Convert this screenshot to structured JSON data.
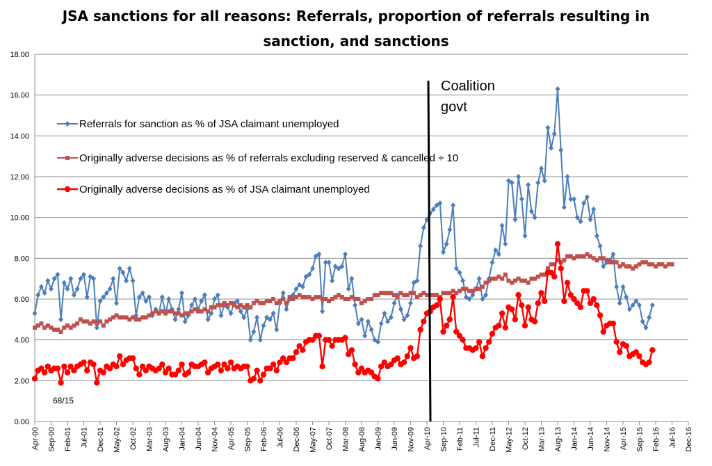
{
  "chart_data": {
    "type": "line",
    "title_line1": "JSA sanctions for all reasons: Referrals, proportion of referrals resulting in",
    "title_line2": "sanction, and sanctions",
    "xlabel": "",
    "ylabel": "",
    "ylim": [
      0,
      18
    ],
    "yticks": [
      "0.00",
      "2.00",
      "4.00",
      "6.00",
      "8.00",
      "10.00",
      "12.00",
      "14.00",
      "16.00",
      "18.00"
    ],
    "xticks": [
      "Apr-00",
      "Sep-00",
      "Feb-01",
      "Jul-01",
      "Dec-01",
      "May-02",
      "Oct-02",
      "Mar-03",
      "Aug-03",
      "Jan-04",
      "Jun-04",
      "Nov-04",
      "Apr-05",
      "Sep-05",
      "Feb-06",
      "Jul-06",
      "Dec-06",
      "May-07",
      "Oct-07",
      "Mar-08",
      "Aug-08",
      "Jan-09",
      "Jun-09",
      "Nov-09",
      "Apr-10",
      "Sep-10",
      "Feb-11",
      "Jul-11",
      "Dec-11",
      "May-12",
      "Oct-12",
      "Mar-13",
      "Aug-13",
      "Jan-14",
      "Jun-14",
      "Nov-14",
      "Apr-15",
      "Sep-15",
      "Feb-16",
      "Jul-16",
      "Dec-16"
    ],
    "x_start": "Apr-00",
    "grid": "horizontal",
    "legend_position": "upper-left",
    "annotation": {
      "text_line1": "Coalition",
      "text_line2": "govt",
      "x": "Apr-10"
    },
    "footnote": "68/15",
    "series": [
      {
        "name": "Referrals for sanction as % of JSA claimant unemployed",
        "color": "#4a7ebb",
        "marker": "diamond",
        "values": [
          5.3,
          6.2,
          6.6,
          6.3,
          6.9,
          6.5,
          7.0,
          7.2,
          5.0,
          6.8,
          6.5,
          7.0,
          6.2,
          6.5,
          7.0,
          7.2,
          6.1,
          7.1,
          7.0,
          4.6,
          5.9,
          6.1,
          6.3,
          6.5,
          7.0,
          5.8,
          7.5,
          7.3,
          6.9,
          7.5,
          6.9,
          5.2,
          6.1,
          6.3,
          5.9,
          6.1,
          5.2,
          5.5,
          5.3,
          6.1,
          5.3,
          6.0,
          5.5,
          5.0,
          5.5,
          6.3,
          4.9,
          5.2,
          5.7,
          6.0,
          5.5,
          5.9,
          6.2,
          5.0,
          5.3,
          6.0,
          6.2,
          5.2,
          5.7,
          5.6,
          5.3,
          5.8,
          5.9,
          5.4,
          5.1,
          5.5,
          4.0,
          4.4,
          5.1,
          4.0,
          4.7,
          5.1,
          5.0,
          5.3,
          4.5,
          5.8,
          6.3,
          5.5,
          6.0,
          6.2,
          6.5,
          6.7,
          6.6,
          7.1,
          7.2,
          7.5,
          8.1,
          8.2,
          5.4,
          7.8,
          7.8,
          6.9,
          7.6,
          7.5,
          7.6,
          8.2,
          6.5,
          7.0,
          5.7,
          4.8,
          5.0,
          4.2,
          4.9,
          4.5,
          4.0,
          3.9,
          4.8,
          5.3,
          4.9,
          5.1,
          5.8,
          6.2,
          5.5,
          5.0,
          5.2,
          5.8,
          6.8,
          6.9,
          8.6,
          9.5,
          9.9,
          10.2,
          10.4,
          10.6,
          10.7,
          8.3,
          8.7,
          9.4,
          10.6,
          7.5,
          7.3,
          6.9,
          6.1,
          6.0,
          6.2,
          6.5,
          7.0,
          6.0,
          6.2,
          7.0,
          7.8,
          8.4,
          8.2,
          9.6,
          8.7,
          11.8,
          11.7,
          9.9,
          12.0,
          10.9,
          9.1,
          11.6,
          10.3,
          10.0,
          11.7,
          12.4,
          11.8,
          14.4,
          13.4,
          14.1,
          16.3,
          13.3,
          10.5,
          12.0,
          10.9,
          10.9,
          10.0,
          9.8,
          10.7,
          11.0,
          9.9,
          10.4,
          9.1,
          8.6,
          7.6,
          7.8,
          7.9,
          8.2,
          6.6,
          5.8,
          6.6,
          6.1,
          5.5,
          5.7,
          5.9,
          5.7,
          4.9,
          4.6,
          5.1,
          5.7
        ]
      },
      {
        "name": "Originally adverse decisions as % of referrals excluding reserved & cancelled ÷ 10",
        "color": "#c0504d",
        "marker": "square",
        "values": [
          4.6,
          4.7,
          4.8,
          4.6,
          4.7,
          4.6,
          4.5,
          4.5,
          4.4,
          4.6,
          4.7,
          4.6,
          4.7,
          4.8,
          5.0,
          4.9,
          4.9,
          4.8,
          4.9,
          4.8,
          4.9,
          4.7,
          4.9,
          5.0,
          5.1,
          5.2,
          5.1,
          5.1,
          5.1,
          5.0,
          5.1,
          5.0,
          5.0,
          5.1,
          5.1,
          5.2,
          5.3,
          5.4,
          5.3,
          5.4,
          5.3,
          5.4,
          5.4,
          5.3,
          5.3,
          5.2,
          5.3,
          5.3,
          5.4,
          5.5,
          5.4,
          5.4,
          5.5,
          5.4,
          5.6,
          5.6,
          5.7,
          5.7,
          5.8,
          5.7,
          5.8,
          5.7,
          5.6,
          5.7,
          5.6,
          5.7,
          5.6,
          5.8,
          5.9,
          5.8,
          5.8,
          5.9,
          5.9,
          6.0,
          5.8,
          5.9,
          6.0,
          5.8,
          6.1,
          6.0,
          6.1,
          6.2,
          6.1,
          6.1,
          6.1,
          6.0,
          6.1,
          6.1,
          6.0,
          6.0,
          5.9,
          6.0,
          6.1,
          6.2,
          6.1,
          6.0,
          6.0,
          6.1,
          6.0,
          6.0,
          5.8,
          5.9,
          6.0,
          6.0,
          6.2,
          6.2,
          6.3,
          6.3,
          6.3,
          6.3,
          6.2,
          6.1,
          6.3,
          6.2,
          6.2,
          6.3,
          6.3,
          6.1,
          6.2,
          6.3,
          6.2,
          6.2,
          6.2,
          6.2,
          6.1,
          6.3,
          6.3,
          6.3,
          6.4,
          6.3,
          6.4,
          6.5,
          6.5,
          6.4,
          6.4,
          6.5,
          6.5,
          6.6,
          6.8,
          6.9,
          7.0,
          7.0,
          7.1,
          7.0,
          7.2,
          6.9,
          6.8,
          6.9,
          7.0,
          6.9,
          6.9,
          6.8,
          7.0,
          7.0,
          7.1,
          7.2,
          7.2,
          7.5,
          7.7,
          7.7,
          7.9,
          7.8,
          7.9,
          8.1,
          8.1,
          8.0,
          8.1,
          8.1,
          8.1,
          8.2,
          8.1,
          8.0,
          7.9,
          8.0,
          8.0,
          7.9,
          7.8,
          7.8,
          7.8,
          7.6,
          7.7,
          7.6,
          7.6,
          7.5,
          7.6,
          7.7,
          7.8,
          7.8,
          7.7,
          7.7,
          7.6,
          7.7,
          7.7,
          7.6,
          7.7,
          7.7
        ]
      },
      {
        "name": "Originally adverse decisions as % of JSA claimant unemployed",
        "color": "#ff0000",
        "marker": "circle",
        "values": [
          2.1,
          2.5,
          2.6,
          2.4,
          2.7,
          2.5,
          2.6,
          2.6,
          1.9,
          2.7,
          2.4,
          2.7,
          2.5,
          2.7,
          2.8,
          2.9,
          2.5,
          2.9,
          2.8,
          1.9,
          2.5,
          2.4,
          2.7,
          2.6,
          2.8,
          2.7,
          3.2,
          2.8,
          3.0,
          3.1,
          3.1,
          2.6,
          2.3,
          2.7,
          2.5,
          2.7,
          2.6,
          2.5,
          2.6,
          2.8,
          2.4,
          2.6,
          2.3,
          2.3,
          2.5,
          2.8,
          2.3,
          2.4,
          2.8,
          2.7,
          2.7,
          2.8,
          2.9,
          2.4,
          2.6,
          2.7,
          2.8,
          2.5,
          2.8,
          2.6,
          2.9,
          2.6,
          2.7,
          2.6,
          2.7,
          2.7,
          2.0,
          2.1,
          2.5,
          2.0,
          2.3,
          2.6,
          2.6,
          2.8,
          2.5,
          2.9,
          3.1,
          2.9,
          3.1,
          3.1,
          3.4,
          3.7,
          3.5,
          3.9,
          4.0,
          4.0,
          4.2,
          4.2,
          2.7,
          4.0,
          4.0,
          3.7,
          4.0,
          4.0,
          4.0,
          4.1,
          3.3,
          3.5,
          2.8,
          2.4,
          2.6,
          2.4,
          2.5,
          2.4,
          2.2,
          2.1,
          2.7,
          2.9,
          2.7,
          2.8,
          3.0,
          3.1,
          2.8,
          2.9,
          3.2,
          3.6,
          3.1,
          3.2,
          4.5,
          4.9,
          5.3,
          5.4,
          5.6,
          5.7,
          6.0,
          4.4,
          4.7,
          5.0,
          6.1,
          4.4,
          4.2,
          4.0,
          3.6,
          3.6,
          3.5,
          3.6,
          3.9,
          3.2,
          3.6,
          3.9,
          4.3,
          4.6,
          4.7,
          5.3,
          4.6,
          5.6,
          5.5,
          5.0,
          6.2,
          5.7,
          4.7,
          5.6,
          5.0,
          4.9,
          5.8,
          6.3,
          5.9,
          7.3,
          7.3,
          7.1,
          8.7,
          7.5,
          5.9,
          6.8,
          6.2,
          6.0,
          5.8,
          5.6,
          6.4,
          6.4,
          5.8,
          6.0,
          5.7,
          5.2,
          4.4,
          4.7,
          4.8,
          4.8,
          3.9,
          3.4,
          3.8,
          3.7,
          3.2,
          3.3,
          3.4,
          3.2,
          2.9,
          2.8,
          2.9,
          3.5
        ]
      }
    ]
  }
}
